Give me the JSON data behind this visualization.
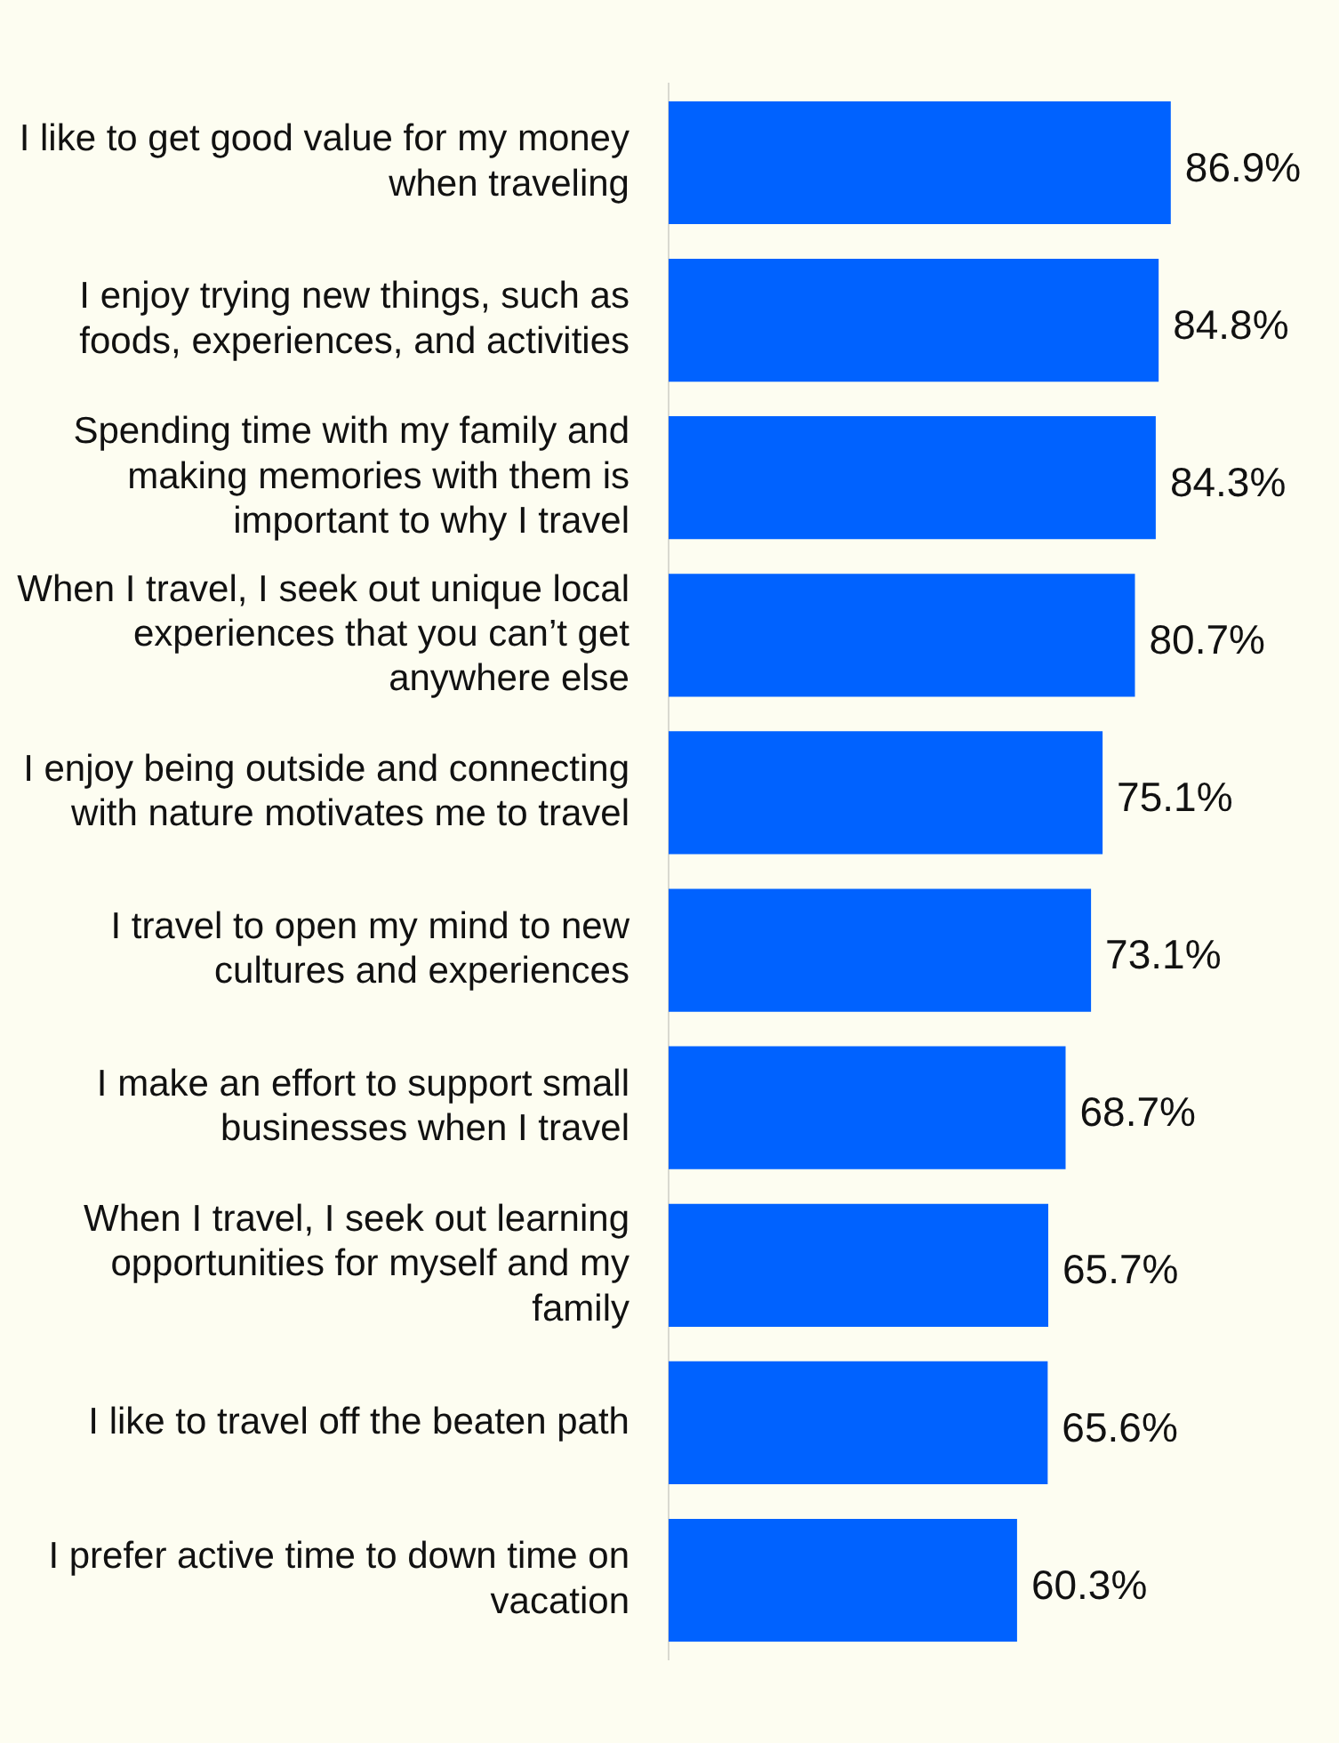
{
  "chart_data": {
    "type": "bar",
    "orientation": "horizontal",
    "categories": [
      "I like to get good value for my money when traveling",
      "I enjoy trying new things, such as foods, experiences, and activities",
      "Spending time with my family and making memories with them is important to why I travel",
      "When I travel, I seek out unique local experiences that you can’t get anywhere else",
      "I enjoy being outside and connecting with nature motivates me to travel",
      "I travel to open my mind to new cultures and experiences",
      "I make an effort to support small businesses when I travel",
      "When I travel, I seek out learning opportunities for myself and my family",
      "I like to travel off the beaten path",
      "I prefer active time to down time on vacation"
    ],
    "values": [
      86.9,
      84.8,
      84.3,
      80.7,
      75.1,
      73.1,
      68.7,
      65.7,
      65.6,
      60.3
    ],
    "value_labels": [
      "86.9%",
      "84.8%",
      "84.3%",
      "80.7%",
      "75.1%",
      "73.1%",
      "68.7%",
      "65.7%",
      "65.6%",
      "60.3%"
    ],
    "color": "#0062ff",
    "grid": false,
    "legend": false
  }
}
